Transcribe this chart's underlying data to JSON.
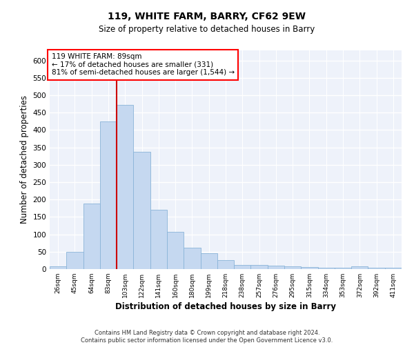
{
  "title": "119, WHITE FARM, BARRY, CF62 9EW",
  "subtitle": "Size of property relative to detached houses in Barry",
  "xlabel": "Distribution of detached houses by size in Barry",
  "ylabel": "Number of detached properties",
  "annotation_line1": "119 WHITE FARM: 89sqm",
  "annotation_line2": "← 17% of detached houses are smaller (331)",
  "annotation_line3": "81% of semi-detached houses are larger (1,544) →",
  "footer1": "Contains HM Land Registry data © Crown copyright and database right 2024.",
  "footer2": "Contains public sector information licensed under the Open Government Licence v3.0.",
  "bar_color": "#c5d8f0",
  "bar_edge_color": "#8ab4d8",
  "background_color": "#eef2fa",
  "grid_color": "#ffffff",
  "categories": [
    "26sqm",
    "45sqm",
    "64sqm",
    "83sqm",
    "103sqm",
    "122sqm",
    "141sqm",
    "160sqm",
    "180sqm",
    "199sqm",
    "218sqm",
    "238sqm",
    "257sqm",
    "276sqm",
    "295sqm",
    "315sqm",
    "334sqm",
    "353sqm",
    "372sqm",
    "392sqm",
    "411sqm"
  ],
  "values": [
    7,
    50,
    188,
    425,
    472,
    338,
    170,
    107,
    62,
    45,
    25,
    12,
    12,
    9,
    8,
    5,
    4,
    4,
    7,
    4,
    4
  ],
  "ylim": [
    0,
    630
  ],
  "yticks": [
    0,
    50,
    100,
    150,
    200,
    250,
    300,
    350,
    400,
    450,
    500,
    550,
    600
  ],
  "red_line_color": "#cc0000",
  "red_line_x": 3.5,
  "figsize": [
    6.0,
    5.0
  ],
  "dpi": 100
}
